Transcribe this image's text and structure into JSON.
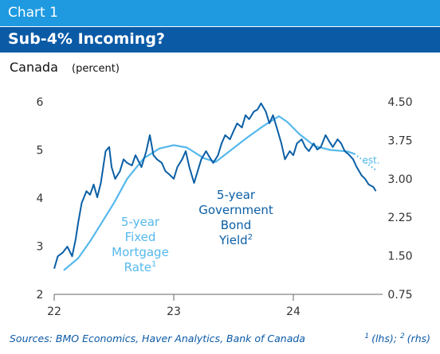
{
  "chart_data": {
    "type": "line",
    "chart_number": "Chart 1",
    "title": "Sub-4% Incoming?",
    "subtitle": "Canada",
    "unit": "(percent)",
    "xlim": [
      22,
      24.72
    ],
    "xticks": [
      22,
      23,
      24
    ],
    "ylim": [
      2,
      6
    ],
    "yticks": [
      2,
      3,
      4,
      5,
      6
    ],
    "y2lim": [
      0.75,
      4.5
    ],
    "y2ticks": [
      {
        "value": 0.75,
        "label": "0.75"
      },
      {
        "value": 1.5,
        "label": "1.50"
      },
      2.25,
      {
        "value": 3,
        "label": "3.00"
      },
      3.75,
      {
        "value": 4.5,
        "label": "4.50"
      }
    ],
    "series": [
      {
        "name_lines": [
          "5-year",
          "Fixed",
          "Mortgage",
          "Rate"
        ],
        "note": "1",
        "color": "#56b8ec",
        "axis": "y",
        "x": [
          22.08,
          22.2,
          22.3,
          22.4,
          22.5,
          22.61,
          22.75,
          22.88,
          23.0,
          23.11,
          23.25,
          23.35,
          23.48,
          23.61,
          23.75,
          23.88,
          23.95,
          24.05,
          24.18,
          24.31,
          24.45,
          24.51
        ],
        "values": [
          2.5,
          2.75,
          3.1,
          3.5,
          3.9,
          4.4,
          4.83,
          5.03,
          5.1,
          5.05,
          4.83,
          4.75,
          5.0,
          5.25,
          5.5,
          5.7,
          5.58,
          5.33,
          5.08,
          5.0,
          4.97,
          4.92
        ]
      },
      {
        "name_lines": [
          "5-year",
          "Government",
          "Bond",
          "Yield"
        ],
        "note": "2",
        "color": "#0b5fa5",
        "axis": "y2",
        "x": [
          22.0,
          22.03,
          22.07,
          22.11,
          22.15,
          22.18,
          22.2,
          22.23,
          22.27,
          22.3,
          22.33,
          22.36,
          22.39,
          22.43,
          22.46,
          22.48,
          22.51,
          22.55,
          22.58,
          22.61,
          22.65,
          22.68,
          22.73,
          22.77,
          22.8,
          22.83,
          22.86,
          22.9,
          22.93,
          22.97,
          23.0,
          23.03,
          23.07,
          23.1,
          23.13,
          23.17,
          23.2,
          23.23,
          23.27,
          23.3,
          23.33,
          23.37,
          23.4,
          23.43,
          23.47,
          23.5,
          23.53,
          23.57,
          23.6,
          23.63,
          23.67,
          23.7,
          23.73,
          23.77,
          23.8,
          23.83,
          23.87,
          23.9,
          23.93,
          23.97,
          24.0,
          24.03,
          24.07,
          24.1,
          24.13,
          24.17,
          24.2,
          24.23,
          24.27,
          24.3,
          24.33,
          24.37,
          24.4,
          24.43,
          24.47,
          24.5,
          24.53,
          24.57,
          24.6,
          24.63,
          24.67,
          24.69
        ],
        "values": [
          1.25,
          1.49,
          1.56,
          1.68,
          1.49,
          1.83,
          2.14,
          2.53,
          2.76,
          2.69,
          2.89,
          2.64,
          2.92,
          3.54,
          3.62,
          3.23,
          3.0,
          3.15,
          3.38,
          3.31,
          3.26,
          3.46,
          3.23,
          3.54,
          3.85,
          3.46,
          3.38,
          3.31,
          3.15,
          3.07,
          3.0,
          3.23,
          3.38,
          3.54,
          3.23,
          2.92,
          3.15,
          3.38,
          3.54,
          3.42,
          3.31,
          3.46,
          3.69,
          3.85,
          3.77,
          3.93,
          4.08,
          4.0,
          4.24,
          4.16,
          4.31,
          4.35,
          4.47,
          4.31,
          4.08,
          4.24,
          3.93,
          3.69,
          3.38,
          3.54,
          3.46,
          3.69,
          3.77,
          3.62,
          3.54,
          3.69,
          3.57,
          3.62,
          3.85,
          3.73,
          3.62,
          3.77,
          3.69,
          3.54,
          3.46,
          3.38,
          3.23,
          3.07,
          3.0,
          2.89,
          2.84,
          2.76
        ]
      },
      {
        "label": "est.",
        "color": "#56b8ec",
        "axis": "y",
        "dotted": true,
        "x": [
          24.51,
          24.69
        ],
        "values": [
          4.92,
          4.58
        ]
      }
    ],
    "source": "Sources: BMO Economics, Haver Analytics, Bank of Canada",
    "notes": [
      {
        "mark": "1",
        "text": "(lhs);"
      },
      {
        "mark": "2",
        "text": "(rhs)"
      }
    ]
  }
}
